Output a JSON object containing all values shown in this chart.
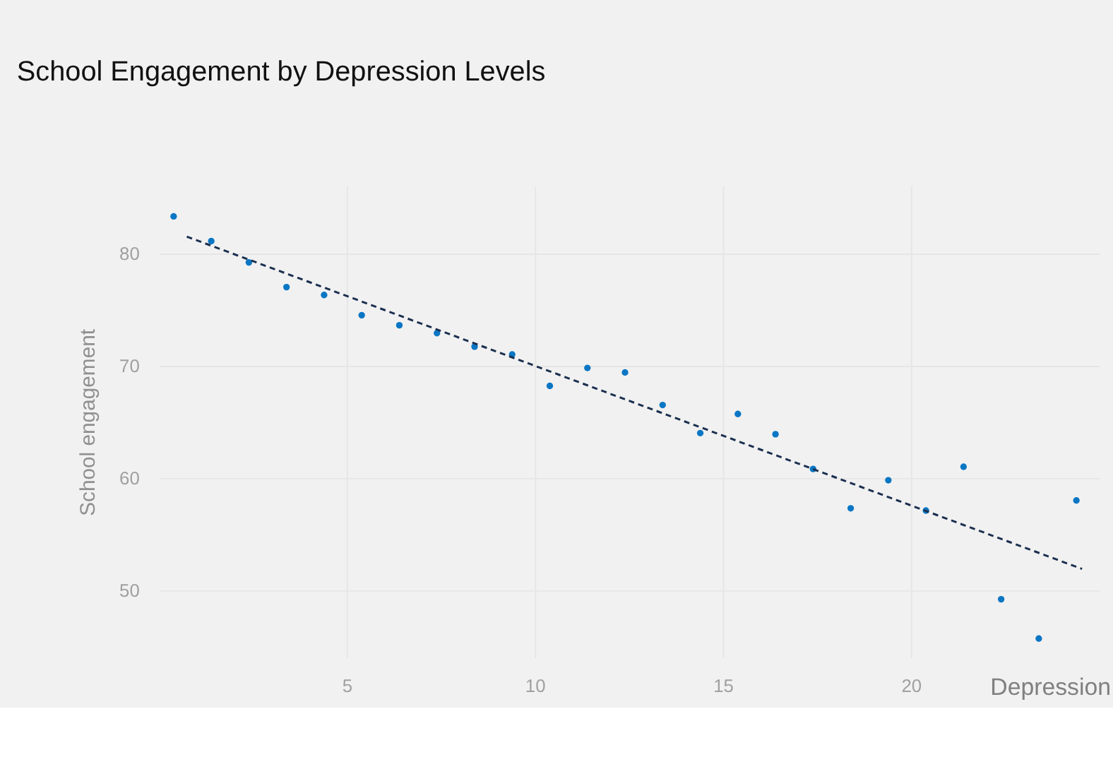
{
  "chart_data": {
    "type": "scatter",
    "title": "School Engagement by Depression Levels",
    "xlabel": "Depression",
    "ylabel": "School engagement",
    "x": [
      0.4,
      1.4,
      2.4,
      3.4,
      4.4,
      5.4,
      6.4,
      7.4,
      8.4,
      9.4,
      10.4,
      11.4,
      12.4,
      13.4,
      14.4,
      15.4,
      16.4,
      17.4,
      18.4,
      19.4,
      20.4,
      21.4,
      22.4,
      23.4,
      24.4
    ],
    "series": [
      {
        "color": "#0a76c4",
        "values": [
          83.3,
          81.1,
          79.2,
          77.0,
          76.3,
          74.5,
          73.6,
          72.9,
          71.7,
          71.0,
          68.2,
          69.8,
          69.4,
          66.5,
          64.0,
          65.7,
          63.9,
          60.8,
          57.3,
          59.8,
          57.1,
          61.0,
          49.2,
          45.7,
          58.0
        ]
      },
      {
        "type": "line",
        "color": "#1b2f4f",
        "line_style": "dashed",
        "marker": "none",
        "x": [
          0.75,
          24.55
        ],
        "values": [
          81.5,
          51.9
        ]
      }
    ],
    "xlim": [
      0,
      25
    ],
    "xticks": [
      5,
      10,
      15,
      20
    ],
    "ylim": [
      44,
      86
    ],
    "yticks": [
      50,
      60,
      70,
      80
    ],
    "grid": true,
    "marker": "circle"
  }
}
